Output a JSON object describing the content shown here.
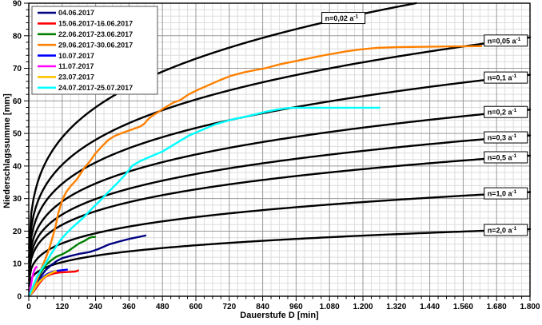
{
  "chart_data": {
    "type": "line",
    "title": "",
    "xlabel": "Dauerstufe D [min]",
    "ylabel": "Niederschlagssumme [mm]",
    "xlim": [
      0,
      1800
    ],
    "ylim": [
      0,
      90
    ],
    "grid": true,
    "legend_position": "top-left",
    "x_tick_values": [
      0,
      120,
      240,
      360,
      480,
      600,
      720,
      840,
      960,
      1080,
      1200,
      1320,
      1440,
      1560,
      1680,
      1800
    ],
    "x_tick_labels": [
      "0",
      "120",
      "240",
      "360",
      "480",
      "600",
      "720",
      "840",
      "960",
      "1.080",
      "1.200",
      "1.320",
      "1.440",
      "1.560",
      "1.680",
      "1.800"
    ],
    "y_tick_values": [
      0,
      10,
      20,
      30,
      40,
      50,
      60,
      70,
      80,
      90
    ],
    "y_tick_labels": [
      "0",
      "10",
      "20",
      "30",
      "40",
      "50",
      "60",
      "70",
      "80",
      "90"
    ],
    "x_minor_step": 30,
    "y_minor_step": 2,
    "colors": {
      "grid_minor": "#dddddd",
      "grid_major": "#999999",
      "frame": "#000000",
      "reference_curve": "#000000",
      "label_box_bg": "#ffffff",
      "label_box_border": "#000000"
    },
    "series": [
      {
        "name": "04.06.2017",
        "color": "#000080",
        "points": [
          [
            0,
            0
          ],
          [
            10,
            1.5
          ],
          [
            20,
            3
          ],
          [
            30,
            4.5
          ],
          [
            45,
            6.3
          ],
          [
            60,
            8
          ],
          [
            80,
            9.5
          ],
          [
            100,
            10.8
          ],
          [
            120,
            11.7
          ],
          [
            150,
            12.4
          ],
          [
            180,
            13
          ],
          [
            220,
            13.6
          ],
          [
            250,
            14.5
          ],
          [
            287,
            15.9
          ],
          [
            320,
            16.7
          ],
          [
            360,
            17.6
          ],
          [
            400,
            18.3
          ],
          [
            422,
            18.7
          ]
        ]
      },
      {
        "name": "15.06.2017-16.06.2017",
        "color": "#ff0000",
        "points": [
          [
            0,
            0
          ],
          [
            10,
            0.8
          ],
          [
            20,
            1.8
          ],
          [
            30,
            3
          ],
          [
            40,
            4.2
          ],
          [
            50,
            5.2
          ],
          [
            60,
            6
          ],
          [
            75,
            6.6
          ],
          [
            90,
            7
          ],
          [
            110,
            7.3
          ],
          [
            130,
            7.4
          ],
          [
            150,
            7.5
          ],
          [
            168,
            7.6
          ],
          [
            180,
            8
          ]
        ]
      },
      {
        "name": "22.06.2017-23.06.2017",
        "color": "#008000",
        "points": [
          [
            0,
            0
          ],
          [
            15,
            2.5
          ],
          [
            30,
            5
          ],
          [
            45,
            7.5
          ],
          [
            60,
            9.5
          ],
          [
            80,
            11
          ],
          [
            100,
            12.2
          ],
          [
            123,
            13
          ],
          [
            140,
            13.8
          ],
          [
            160,
            15
          ],
          [
            180,
            16.2
          ],
          [
            200,
            17
          ],
          [
            215,
            17.8
          ],
          [
            228,
            18.2
          ],
          [
            240,
            18.2
          ]
        ]
      },
      {
        "name": "29.06.2017-30.06.2017",
        "color": "#ff8000",
        "points": [
          [
            0,
            0
          ],
          [
            15,
            2
          ],
          [
            30,
            5
          ],
          [
            45,
            8.5
          ],
          [
            60,
            11.5
          ],
          [
            72,
            14.2
          ],
          [
            85,
            18
          ],
          [
            95,
            21
          ],
          [
            106,
            25.5
          ],
          [
            120,
            29.5
          ],
          [
            135,
            32.1
          ],
          [
            150,
            33.8
          ],
          [
            172,
            35.8
          ],
          [
            200,
            39.5
          ],
          [
            220,
            41.5
          ],
          [
            238,
            43.7
          ],
          [
            260,
            45.8
          ],
          [
            287,
            48.1
          ],
          [
            310,
            49.3
          ],
          [
            340,
            50.3
          ],
          [
            370,
            51.2
          ],
          [
            402,
            52.2
          ],
          [
            415,
            53
          ],
          [
            430,
            54.5
          ],
          [
            445,
            55.5
          ],
          [
            460,
            56.3
          ],
          [
            488,
            57.9
          ],
          [
            520,
            59.5
          ],
          [
            545,
            60.3
          ],
          [
            574,
            62
          ],
          [
            610,
            63.5
          ],
          [
            650,
            65
          ],
          [
            690,
            66.5
          ],
          [
            726,
            67.7
          ],
          [
            770,
            68.7
          ],
          [
            810,
            69.4
          ],
          [
            853,
            70.1
          ],
          [
            900,
            71.2
          ],
          [
            940,
            71.9
          ],
          [
            980,
            72.6
          ],
          [
            1020,
            73.3
          ],
          [
            1060,
            74
          ],
          [
            1100,
            74.6
          ],
          [
            1140,
            75.2
          ],
          [
            1190,
            75.8
          ],
          [
            1255,
            76.3
          ],
          [
            1320,
            76.5
          ],
          [
            1400,
            76.6
          ],
          [
            1500,
            76.7
          ],
          [
            1628,
            76.8
          ]
        ]
      },
      {
        "name": "10.07.2017",
        "color": "#0000ff",
        "points": [
          [
            0,
            0
          ],
          [
            8,
            0.7
          ],
          [
            16,
            1.6
          ],
          [
            25,
            2.8
          ],
          [
            35,
            4.2
          ],
          [
            45,
            5.3
          ],
          [
            55,
            6.2
          ],
          [
            70,
            7
          ],
          [
            85,
            7.5
          ],
          [
            100,
            7.8
          ],
          [
            120,
            8
          ],
          [
            140,
            8.2
          ]
        ]
      },
      {
        "name": "11.07.2017",
        "color": "#ff00ff",
        "points": [
          [
            0,
            0
          ],
          [
            4,
            1.5
          ],
          [
            8,
            3.5
          ],
          [
            12,
            5.5
          ],
          [
            16,
            7
          ],
          [
            20,
            8
          ],
          [
            25,
            8.8
          ],
          [
            30,
            9.2
          ]
        ]
      },
      {
        "name": "23.07.2017",
        "color": "#ffc000",
        "points": [
          [
            0,
            0
          ],
          [
            10,
            1
          ],
          [
            20,
            2.2
          ],
          [
            30,
            3.6
          ],
          [
            42,
            4.8
          ],
          [
            55,
            5.8
          ],
          [
            68,
            6.6
          ],
          [
            80,
            7.1
          ],
          [
            90,
            7.5
          ],
          [
            100,
            7.8
          ]
        ]
      },
      {
        "name": "24.07.2017-25.07.2017",
        "color": "#00ffff",
        "points": [
          [
            0,
            0
          ],
          [
            15,
            3
          ],
          [
            30,
            6
          ],
          [
            45,
            8.2
          ],
          [
            60,
            10
          ],
          [
            80,
            13
          ],
          [
            100,
            15.5
          ],
          [
            115,
            17.4
          ],
          [
            135,
            19.3
          ],
          [
            155,
            21
          ],
          [
            172,
            22.3
          ],
          [
            200,
            24.5
          ],
          [
            230,
            27.2
          ],
          [
            260,
            29.7
          ],
          [
            287,
            32.1
          ],
          [
            315,
            34.5
          ],
          [
            345,
            37.2
          ],
          [
            373,
            40.2
          ],
          [
            400,
            41.5
          ],
          [
            440,
            43
          ],
          [
            479,
            44.4
          ],
          [
            510,
            46
          ],
          [
            545,
            47.8
          ],
          [
            574,
            49.3
          ],
          [
            620,
            51
          ],
          [
            670,
            52.8
          ],
          [
            726,
            54.2
          ],
          [
            780,
            55.2
          ],
          [
            820,
            56
          ],
          [
            853,
            56.7
          ],
          [
            890,
            57.3
          ],
          [
            930,
            57.8
          ],
          [
            960,
            57.9
          ],
          [
            1050,
            57.9
          ],
          [
            1150,
            57.9
          ],
          [
            1262,
            57.9
          ]
        ]
      }
    ],
    "reference_curves": [
      {
        "label": "n=0,02 a⁻¹",
        "label_prefix": "n=0,02 a",
        "label_sup": "-1",
        "value_at_1800": 96,
        "exponent": 0.25,
        "label_at_D": 1130
      },
      {
        "label": "n=0,05 a⁻¹",
        "label_prefix": "n=0,05 a",
        "label_sup": "-1",
        "value_at_1800": 79.5,
        "exponent": 0.25,
        "label_at_D": 1713
      },
      {
        "label": "n=0,1 a⁻¹",
        "label_prefix": "n=0,1 a",
        "label_sup": "-1",
        "value_at_1800": 68,
        "exponent": 0.25,
        "label_at_D": 1713
      },
      {
        "label": "n=0,2 a⁻¹",
        "label_prefix": "n=0,2 a",
        "label_sup": "-1",
        "value_at_1800": 57.3,
        "exponent": 0.25,
        "label_at_D": 1713
      },
      {
        "label": "n=0,3 a⁻¹",
        "label_prefix": "n=0,3 a",
        "label_sup": "-1",
        "value_at_1800": 49.4,
        "exponent": 0.25,
        "label_at_D": 1713
      },
      {
        "label": "n=0,5 a⁻¹",
        "label_prefix": "n=0,5 a",
        "label_sup": "-1",
        "value_at_1800": 43.2,
        "exponent": 0.25,
        "label_at_D": 1713
      },
      {
        "label": "n=1,0 a⁻¹",
        "label_prefix": "n=1,0 a",
        "label_sup": "-1",
        "value_at_1800": 32,
        "exponent": 0.25,
        "label_at_D": 1713
      },
      {
        "label": "n=2,0 a⁻¹",
        "label_prefix": "n=2,0 a",
        "label_sup": "-1",
        "value_at_1800": 20.6,
        "exponent": 0.25,
        "label_at_D": 1713
      }
    ]
  }
}
